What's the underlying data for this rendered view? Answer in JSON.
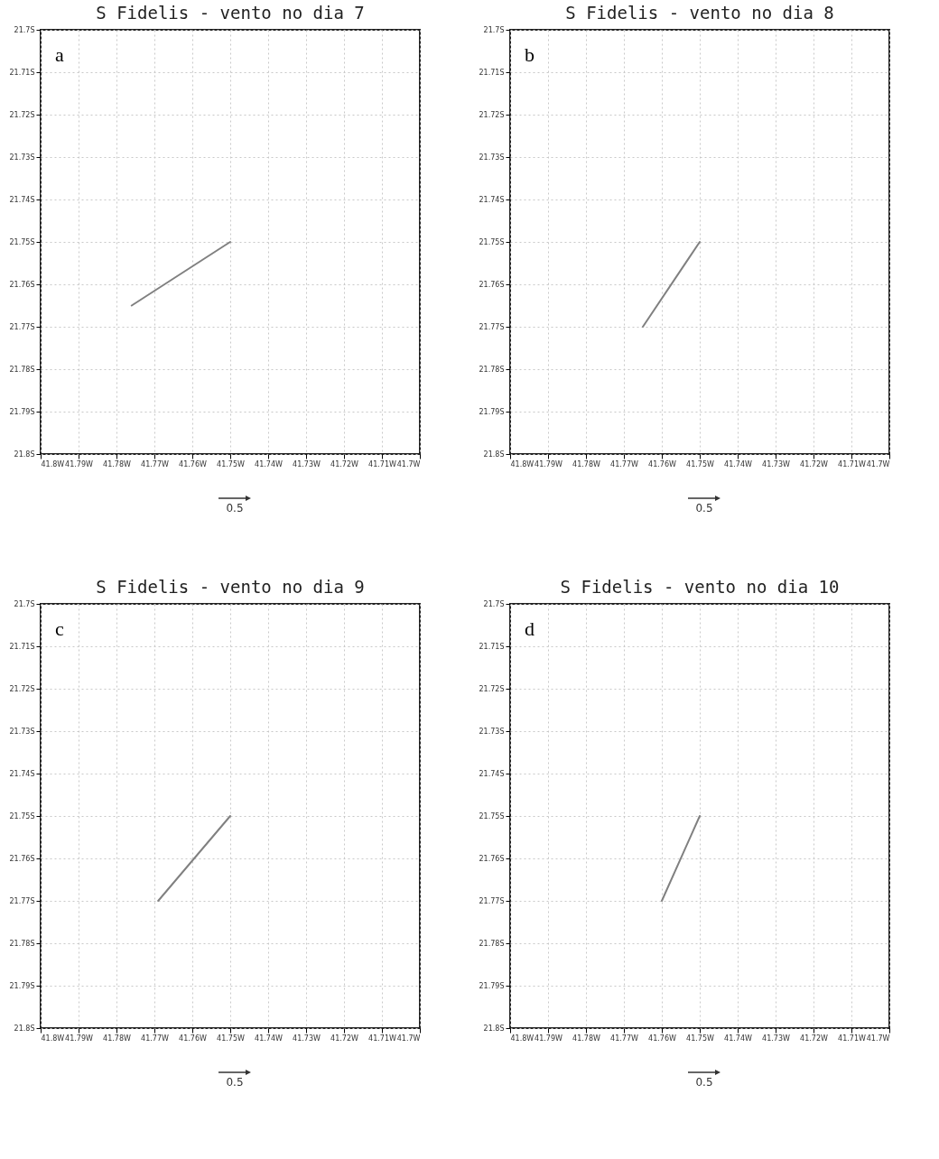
{
  "chart_data": [
    {
      "type": "line",
      "title": "S Fidelis - vento no dia 7",
      "x": [
        -41.75,
        -41.776
      ],
      "series": [
        {
          "color": "#808080",
          "values": [
            -21.75,
            -21.765
          ]
        }
      ],
      "xlim": [
        -41.8,
        -41.7
      ],
      "ylim": [
        -21.8,
        -21.7
      ],
      "xticks": [
        {
          "value": -41.8,
          "label": "41.8W"
        },
        {
          "value": -41.79,
          "label": "41.79W"
        },
        {
          "value": -41.78,
          "label": "41.78W"
        },
        {
          "value": -41.77,
          "label": "41.77W"
        },
        {
          "value": -41.76,
          "label": "41.76W"
        },
        {
          "value": -41.75,
          "label": "41.75W"
        },
        {
          "value": -41.74,
          "label": "41.74W"
        },
        {
          "value": -41.73,
          "label": "41.73W"
        },
        {
          "value": -41.72,
          "label": "41.72W"
        },
        {
          "value": -41.71,
          "label": "41.71W"
        },
        {
          "value": -41.7,
          "label": "41.7W"
        }
      ],
      "yticks": [
        {
          "value": -21.8,
          "label": "21.8S"
        },
        {
          "value": -21.79,
          "label": "21.79S"
        },
        {
          "value": -21.78,
          "label": "21.78S"
        },
        {
          "value": -21.77,
          "label": "21.77S"
        },
        {
          "value": -21.76,
          "label": "21.76S"
        },
        {
          "value": -21.75,
          "label": "21.75S"
        },
        {
          "value": -21.74,
          "label": "21.74S"
        },
        {
          "value": -21.73,
          "label": "21.73S"
        },
        {
          "value": -21.72,
          "label": "21.72S"
        },
        {
          "value": -21.71,
          "label": "21.71S"
        },
        {
          "value": -21.7,
          "label": "21.7S"
        }
      ],
      "grid": true,
      "annotations": [
        "a",
        "0.5"
      ]
    },
    {
      "type": "line",
      "title": "S Fidelis - vento no dia 8",
      "x": [
        -41.75,
        -41.765
      ],
      "series": [
        {
          "color": "#808080",
          "values": [
            -21.75,
            -21.77
          ]
        }
      ],
      "xlim": [
        -41.8,
        -41.7
      ],
      "ylim": [
        -21.8,
        -21.7
      ],
      "xticks": [
        {
          "value": -41.8,
          "label": "41.8W"
        },
        {
          "value": -41.79,
          "label": "41.79W"
        },
        {
          "value": -41.78,
          "label": "41.78W"
        },
        {
          "value": -41.77,
          "label": "41.77W"
        },
        {
          "value": -41.76,
          "label": "41.76W"
        },
        {
          "value": -41.75,
          "label": "41.75W"
        },
        {
          "value": -41.74,
          "label": "41.74W"
        },
        {
          "value": -41.73,
          "label": "41.73W"
        },
        {
          "value": -41.72,
          "label": "41.72W"
        },
        {
          "value": -41.71,
          "label": "41.71W"
        },
        {
          "value": -41.7,
          "label": "41.7W"
        }
      ],
      "yticks": [
        {
          "value": -21.8,
          "label": "21.8S"
        },
        {
          "value": -21.79,
          "label": "21.79S"
        },
        {
          "value": -21.78,
          "label": "21.78S"
        },
        {
          "value": -21.77,
          "label": "21.77S"
        },
        {
          "value": -21.76,
          "label": "21.76S"
        },
        {
          "value": -21.75,
          "label": "21.75S"
        },
        {
          "value": -21.74,
          "label": "21.74S"
        },
        {
          "value": -21.73,
          "label": "21.73S"
        },
        {
          "value": -21.72,
          "label": "21.72S"
        },
        {
          "value": -21.71,
          "label": "21.71S"
        },
        {
          "value": -21.7,
          "label": "21.7S"
        }
      ],
      "grid": true,
      "annotations": [
        "b",
        "0.5"
      ]
    },
    {
      "type": "line",
      "title": "S Fidelis - vento no dia 9",
      "x": [
        -41.75,
        -41.769
      ],
      "series": [
        {
          "color": "#808080",
          "values": [
            -21.75,
            -21.77
          ]
        }
      ],
      "xlim": [
        -41.8,
        -41.7
      ],
      "ylim": [
        -21.8,
        -21.7
      ],
      "xticks": [
        {
          "value": -41.8,
          "label": "41.8W"
        },
        {
          "value": -41.79,
          "label": "41.79W"
        },
        {
          "value": -41.78,
          "label": "41.78W"
        },
        {
          "value": -41.77,
          "label": "41.77W"
        },
        {
          "value": -41.76,
          "label": "41.76W"
        },
        {
          "value": -41.75,
          "label": "41.75W"
        },
        {
          "value": -41.74,
          "label": "41.74W"
        },
        {
          "value": -41.73,
          "label": "41.73W"
        },
        {
          "value": -41.72,
          "label": "41.72W"
        },
        {
          "value": -41.71,
          "label": "41.71W"
        },
        {
          "value": -41.7,
          "label": "41.7W"
        }
      ],
      "yticks": [
        {
          "value": -21.8,
          "label": "21.8S"
        },
        {
          "value": -21.79,
          "label": "21.79S"
        },
        {
          "value": -21.78,
          "label": "21.78S"
        },
        {
          "value": -21.77,
          "label": "21.77S"
        },
        {
          "value": -21.76,
          "label": "21.76S"
        },
        {
          "value": -21.75,
          "label": "21.75S"
        },
        {
          "value": -21.74,
          "label": "21.74S"
        },
        {
          "value": -21.73,
          "label": "21.73S"
        },
        {
          "value": -21.72,
          "label": "21.72S"
        },
        {
          "value": -21.71,
          "label": "21.71S"
        },
        {
          "value": -21.7,
          "label": "21.7S"
        }
      ],
      "grid": true,
      "annotations": [
        "c",
        "0.5"
      ]
    },
    {
      "type": "line",
      "title": "S Fidelis - vento no dia 10",
      "x": [
        -41.75,
        -41.76
      ],
      "series": [
        {
          "color": "#808080",
          "values": [
            -21.75,
            -21.77
          ]
        }
      ],
      "xlim": [
        -41.8,
        -41.7
      ],
      "ylim": [
        -21.8,
        -21.7
      ],
      "xticks": [
        {
          "value": -41.8,
          "label": "41.8W"
        },
        {
          "value": -41.79,
          "label": "41.79W"
        },
        {
          "value": -41.78,
          "label": "41.78W"
        },
        {
          "value": -41.77,
          "label": "41.77W"
        },
        {
          "value": -41.76,
          "label": "41.76W"
        },
        {
          "value": -41.75,
          "label": "41.75W"
        },
        {
          "value": -41.74,
          "label": "41.74W"
        },
        {
          "value": -41.73,
          "label": "41.73W"
        },
        {
          "value": -41.72,
          "label": "41.72W"
        },
        {
          "value": -41.71,
          "label": "41.71W"
        },
        {
          "value": -41.7,
          "label": "41.7W"
        }
      ],
      "yticks": [
        {
          "value": -21.8,
          "label": "21.8S"
        },
        {
          "value": -21.79,
          "label": "21.79S"
        },
        {
          "value": -21.78,
          "label": "21.78S"
        },
        {
          "value": -21.77,
          "label": "21.77S"
        },
        {
          "value": -21.76,
          "label": "21.76S"
        },
        {
          "value": -21.75,
          "label": "21.75S"
        },
        {
          "value": -21.74,
          "label": "21.74S"
        },
        {
          "value": -21.73,
          "label": "21.73S"
        },
        {
          "value": -21.72,
          "label": "21.72S"
        },
        {
          "value": -21.71,
          "label": "21.71S"
        },
        {
          "value": -21.7,
          "label": "21.7S"
        }
      ],
      "grid": true,
      "annotations": [
        "d",
        "0.5"
      ]
    }
  ]
}
